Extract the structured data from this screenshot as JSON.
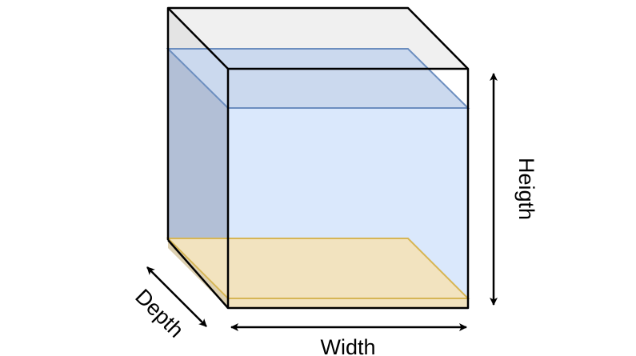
{
  "diagram": {
    "labels": {
      "width": "Width",
      "height": "Heigth",
      "depth": "Depth"
    },
    "colors": {
      "outline": "#000000",
      "water_fill": "#dae8fc",
      "water_stroke": "#6c8ebf",
      "water_side_fill": "#b2bfd6",
      "water_top_fill": "#cbd9ee",
      "sand_fill": "#f2e3bf",
      "sand_stroke": "#d6b656",
      "glass_top_fill": "#f0f0f0",
      "glass_side_fill": "#e4e4e4"
    }
  }
}
